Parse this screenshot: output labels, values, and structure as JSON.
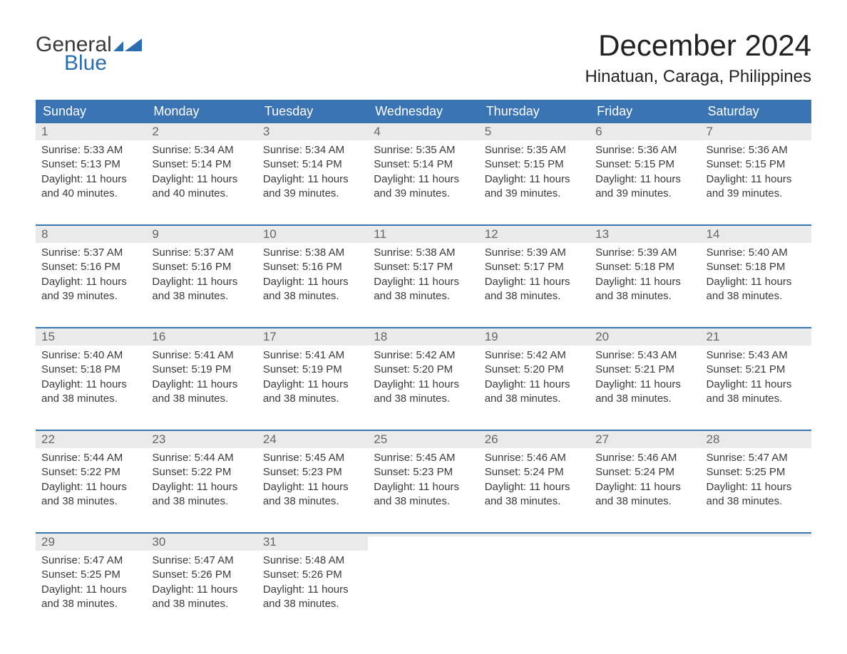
{
  "logo": {
    "text1": "General",
    "text2": "Blue",
    "accent_color": "#2b6daf"
  },
  "title": "December 2024",
  "location": "Hinatuan, Caraga, Philippines",
  "colors": {
    "header_bg": "#3b74b3",
    "header_text": "#ffffff",
    "daynum_bg": "#eaeaea",
    "daynum_text": "#666666",
    "body_text": "#3a3a3a",
    "week_border": "#3b74b3",
    "background": "#ffffff"
  },
  "layout": {
    "columns": 7,
    "rows": 5,
    "start_weekday": "Sunday"
  },
  "weekdays": [
    "Sunday",
    "Monday",
    "Tuesday",
    "Wednesday",
    "Thursday",
    "Friday",
    "Saturday"
  ],
  "labels": {
    "sunrise": "Sunrise",
    "sunset": "Sunset",
    "daylight": "Daylight"
  },
  "days": [
    {
      "n": 1,
      "sunrise": "5:33 AM",
      "sunset": "5:13 PM",
      "daylight": "11 hours and 40 minutes."
    },
    {
      "n": 2,
      "sunrise": "5:34 AM",
      "sunset": "5:14 PM",
      "daylight": "11 hours and 40 minutes."
    },
    {
      "n": 3,
      "sunrise": "5:34 AM",
      "sunset": "5:14 PM",
      "daylight": "11 hours and 39 minutes."
    },
    {
      "n": 4,
      "sunrise": "5:35 AM",
      "sunset": "5:14 PM",
      "daylight": "11 hours and 39 minutes."
    },
    {
      "n": 5,
      "sunrise": "5:35 AM",
      "sunset": "5:15 PM",
      "daylight": "11 hours and 39 minutes."
    },
    {
      "n": 6,
      "sunrise": "5:36 AM",
      "sunset": "5:15 PM",
      "daylight": "11 hours and 39 minutes."
    },
    {
      "n": 7,
      "sunrise": "5:36 AM",
      "sunset": "5:15 PM",
      "daylight": "11 hours and 39 minutes."
    },
    {
      "n": 8,
      "sunrise": "5:37 AM",
      "sunset": "5:16 PM",
      "daylight": "11 hours and 39 minutes."
    },
    {
      "n": 9,
      "sunrise": "5:37 AM",
      "sunset": "5:16 PM",
      "daylight": "11 hours and 38 minutes."
    },
    {
      "n": 10,
      "sunrise": "5:38 AM",
      "sunset": "5:16 PM",
      "daylight": "11 hours and 38 minutes."
    },
    {
      "n": 11,
      "sunrise": "5:38 AM",
      "sunset": "5:17 PM",
      "daylight": "11 hours and 38 minutes."
    },
    {
      "n": 12,
      "sunrise": "5:39 AM",
      "sunset": "5:17 PM",
      "daylight": "11 hours and 38 minutes."
    },
    {
      "n": 13,
      "sunrise": "5:39 AM",
      "sunset": "5:18 PM",
      "daylight": "11 hours and 38 minutes."
    },
    {
      "n": 14,
      "sunrise": "5:40 AM",
      "sunset": "5:18 PM",
      "daylight": "11 hours and 38 minutes."
    },
    {
      "n": 15,
      "sunrise": "5:40 AM",
      "sunset": "5:18 PM",
      "daylight": "11 hours and 38 minutes."
    },
    {
      "n": 16,
      "sunrise": "5:41 AM",
      "sunset": "5:19 PM",
      "daylight": "11 hours and 38 minutes."
    },
    {
      "n": 17,
      "sunrise": "5:41 AM",
      "sunset": "5:19 PM",
      "daylight": "11 hours and 38 minutes."
    },
    {
      "n": 18,
      "sunrise": "5:42 AM",
      "sunset": "5:20 PM",
      "daylight": "11 hours and 38 minutes."
    },
    {
      "n": 19,
      "sunrise": "5:42 AM",
      "sunset": "5:20 PM",
      "daylight": "11 hours and 38 minutes."
    },
    {
      "n": 20,
      "sunrise": "5:43 AM",
      "sunset": "5:21 PM",
      "daylight": "11 hours and 38 minutes."
    },
    {
      "n": 21,
      "sunrise": "5:43 AM",
      "sunset": "5:21 PM",
      "daylight": "11 hours and 38 minutes."
    },
    {
      "n": 22,
      "sunrise": "5:44 AM",
      "sunset": "5:22 PM",
      "daylight": "11 hours and 38 minutes."
    },
    {
      "n": 23,
      "sunrise": "5:44 AM",
      "sunset": "5:22 PM",
      "daylight": "11 hours and 38 minutes."
    },
    {
      "n": 24,
      "sunrise": "5:45 AM",
      "sunset": "5:23 PM",
      "daylight": "11 hours and 38 minutes."
    },
    {
      "n": 25,
      "sunrise": "5:45 AM",
      "sunset": "5:23 PM",
      "daylight": "11 hours and 38 minutes."
    },
    {
      "n": 26,
      "sunrise": "5:46 AM",
      "sunset": "5:24 PM",
      "daylight": "11 hours and 38 minutes."
    },
    {
      "n": 27,
      "sunrise": "5:46 AM",
      "sunset": "5:24 PM",
      "daylight": "11 hours and 38 minutes."
    },
    {
      "n": 28,
      "sunrise": "5:47 AM",
      "sunset": "5:25 PM",
      "daylight": "11 hours and 38 minutes."
    },
    {
      "n": 29,
      "sunrise": "5:47 AM",
      "sunset": "5:25 PM",
      "daylight": "11 hours and 38 minutes."
    },
    {
      "n": 30,
      "sunrise": "5:47 AM",
      "sunset": "5:26 PM",
      "daylight": "11 hours and 38 minutes."
    },
    {
      "n": 31,
      "sunrise": "5:48 AM",
      "sunset": "5:26 PM",
      "daylight": "11 hours and 38 minutes."
    }
  ],
  "first_day_column": 0,
  "trailing_empty": 4
}
